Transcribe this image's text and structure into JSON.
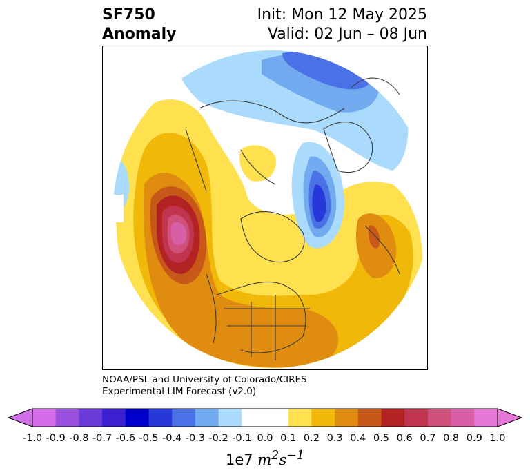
{
  "header": {
    "variable": "SF750",
    "subtitle": "Anomaly",
    "init": "Init: Mon 12 May 2025",
    "valid": "Valid: 02 Jun – 08 Jun"
  },
  "credit": {
    "line1": "NOAA/PSL and University of Colorado/CIRES",
    "line2": "Experimental LIM Forecast (v2.0)"
  },
  "colorbar": {
    "ticks": [
      "-1.0",
      "-0.9",
      "-0.8",
      "-0.7",
      "-0.6",
      "-0.5",
      "-0.4",
      "-0.3",
      "-0.2",
      "-0.1",
      "0.0",
      "0.1",
      "0.2",
      "0.3",
      "0.4",
      "0.5",
      "0.6",
      "0.7",
      "0.8",
      "0.9",
      "1.0"
    ],
    "colors": [
      "#d46ee8",
      "#9a50df",
      "#6a3bd8",
      "#3b1fd0",
      "#0000cc",
      "#2638d8",
      "#4a72e6",
      "#72aaf0",
      "#aadafc",
      "#ffffff",
      "#ffffff",
      "#ffe04e",
      "#f0b808",
      "#e08c10",
      "#c85818",
      "#b32222",
      "#c0344e",
      "#d0507c",
      "#d85ea8",
      "#e878d8"
    ],
    "under_color": "#d070e8",
    "over_color": "#e878d8",
    "units_scale": "1e7",
    "units_main": "m",
    "units_sup1": "2",
    "units_main2": "s",
    "units_sup2": "−1"
  }
}
